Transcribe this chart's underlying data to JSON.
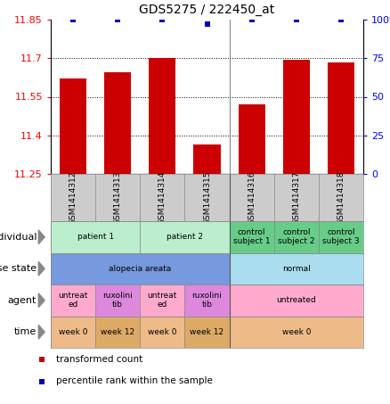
{
  "title": "GDS5275 / 222450_at",
  "samples": [
    "GSM1414312",
    "GSM1414313",
    "GSM1414314",
    "GSM1414315",
    "GSM1414316",
    "GSM1414317",
    "GSM1414318"
  ],
  "transformed_counts": [
    11.62,
    11.645,
    11.7,
    11.365,
    11.52,
    11.695,
    11.685
  ],
  "percentile_ranks": [
    100,
    100,
    100,
    97,
    100,
    100,
    100
  ],
  "ylim_left": [
    11.25,
    11.85
  ],
  "yticks_left": [
    11.25,
    11.4,
    11.55,
    11.7,
    11.85
  ],
  "ytick_labels_left": [
    "11.25",
    "11.4",
    "11.55",
    "11.7",
    "11.85"
  ],
  "ylim_right": [
    0,
    100
  ],
  "yticks_right": [
    0,
    25,
    50,
    75,
    100
  ],
  "ytick_labels_right": [
    "0",
    "25",
    "50",
    "75",
    "100%"
  ],
  "bar_color": "#cc0000",
  "dot_color": "#0000bb",
  "grid_ticks": [
    11.4,
    11.55,
    11.7
  ],
  "sample_bg_color": "#cccccc",
  "annotation_rows": [
    {
      "label": "individual",
      "cells": [
        {
          "text": "patient 1",
          "span": [
            0,
            2
          ],
          "color": "#bbeecc"
        },
        {
          "text": "patient 2",
          "span": [
            2,
            4
          ],
          "color": "#bbeecc"
        },
        {
          "text": "control\nsubject 1",
          "span": [
            4,
            5
          ],
          "color": "#66cc88"
        },
        {
          "text": "control\nsubject 2",
          "span": [
            5,
            6
          ],
          "color": "#66cc88"
        },
        {
          "text": "control\nsubject 3",
          "span": [
            6,
            7
          ],
          "color": "#66cc88"
        }
      ]
    },
    {
      "label": "disease state",
      "cells": [
        {
          "text": "alopecia areata",
          "span": [
            0,
            4
          ],
          "color": "#7799dd"
        },
        {
          "text": "normal",
          "span": [
            4,
            7
          ],
          "color": "#aaddee"
        }
      ]
    },
    {
      "label": "agent",
      "cells": [
        {
          "text": "untreat\ned",
          "span": [
            0,
            1
          ],
          "color": "#ffaacc"
        },
        {
          "text": "ruxolini\ntib",
          "span": [
            1,
            2
          ],
          "color": "#dd88dd"
        },
        {
          "text": "untreat\ned",
          "span": [
            2,
            3
          ],
          "color": "#ffaacc"
        },
        {
          "text": "ruxolini\ntib",
          "span": [
            3,
            4
          ],
          "color": "#dd88dd"
        },
        {
          "text": "untreated",
          "span": [
            4,
            7
          ],
          "color": "#ffaacc"
        }
      ]
    },
    {
      "label": "time",
      "cells": [
        {
          "text": "week 0",
          "span": [
            0,
            1
          ],
          "color": "#eebb88"
        },
        {
          "text": "week 12",
          "span": [
            1,
            2
          ],
          "color": "#ddaa66"
        },
        {
          "text": "week 0",
          "span": [
            2,
            3
          ],
          "color": "#eebb88"
        },
        {
          "text": "week 12",
          "span": [
            3,
            4
          ],
          "color": "#ddaa66"
        },
        {
          "text": "week 0",
          "span": [
            4,
            7
          ],
          "color": "#eebb88"
        }
      ]
    }
  ],
  "legend": [
    {
      "color": "#cc0000",
      "label": "transformed count"
    },
    {
      "color": "#0000bb",
      "label": "percentile rank within the sample"
    }
  ],
  "fig_width": 4.38,
  "fig_height": 4.53,
  "dpi": 100
}
